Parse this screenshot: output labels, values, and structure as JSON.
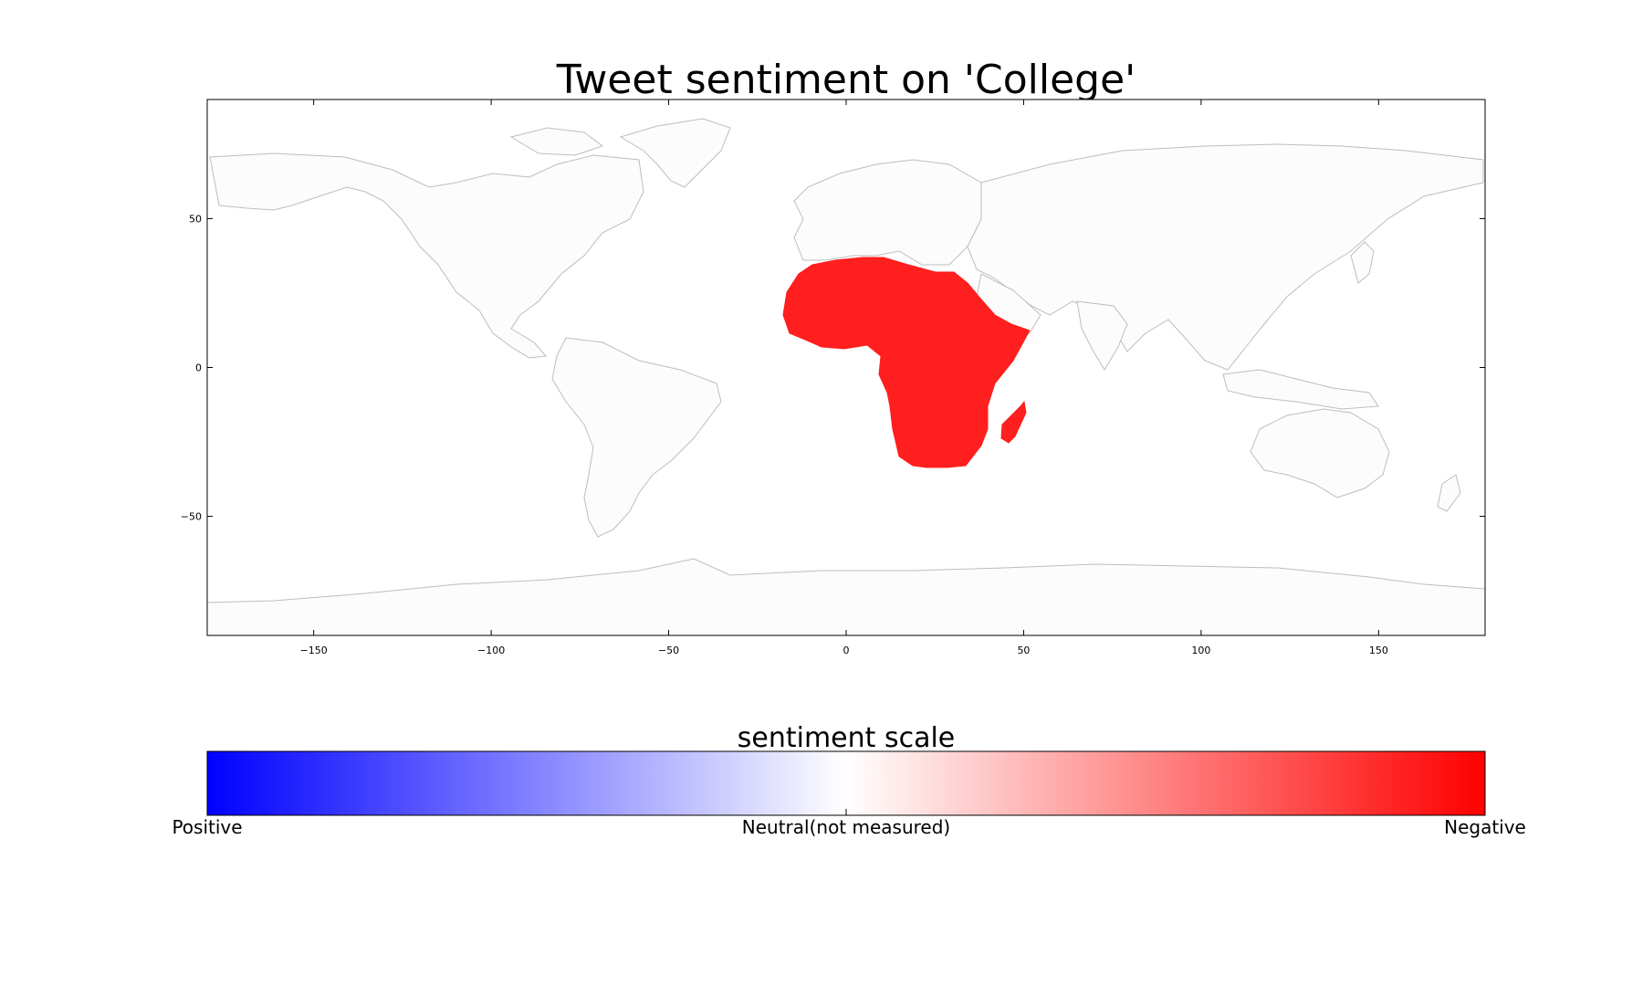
{
  "map": {
    "title": "Tweet sentiment on 'College'",
    "projection": "equirectangular",
    "lon_range": [
      -180,
      180
    ],
    "lat_range": [
      -90,
      90
    ],
    "x_ticks": [
      -150,
      -100,
      -50,
      0,
      50,
      100,
      150
    ],
    "y_ticks": [
      -50,
      0,
      50
    ],
    "tick_label_minus": "−",
    "land_fill": "#fcfcfc",
    "coastline_color": "#bdbdbd",
    "frame_color": "#000000",
    "shaded_regions": [
      {
        "region": "Africa",
        "sentiment": "Negative",
        "color": "#ff1f1f"
      }
    ]
  },
  "colorbar": {
    "title": "sentiment scale",
    "stops": [
      "#0000ff",
      "#ffffff",
      "#ff0000"
    ],
    "labels": {
      "left": "Positive",
      "center": "Neutral(not measured)",
      "right": "Negative"
    }
  }
}
